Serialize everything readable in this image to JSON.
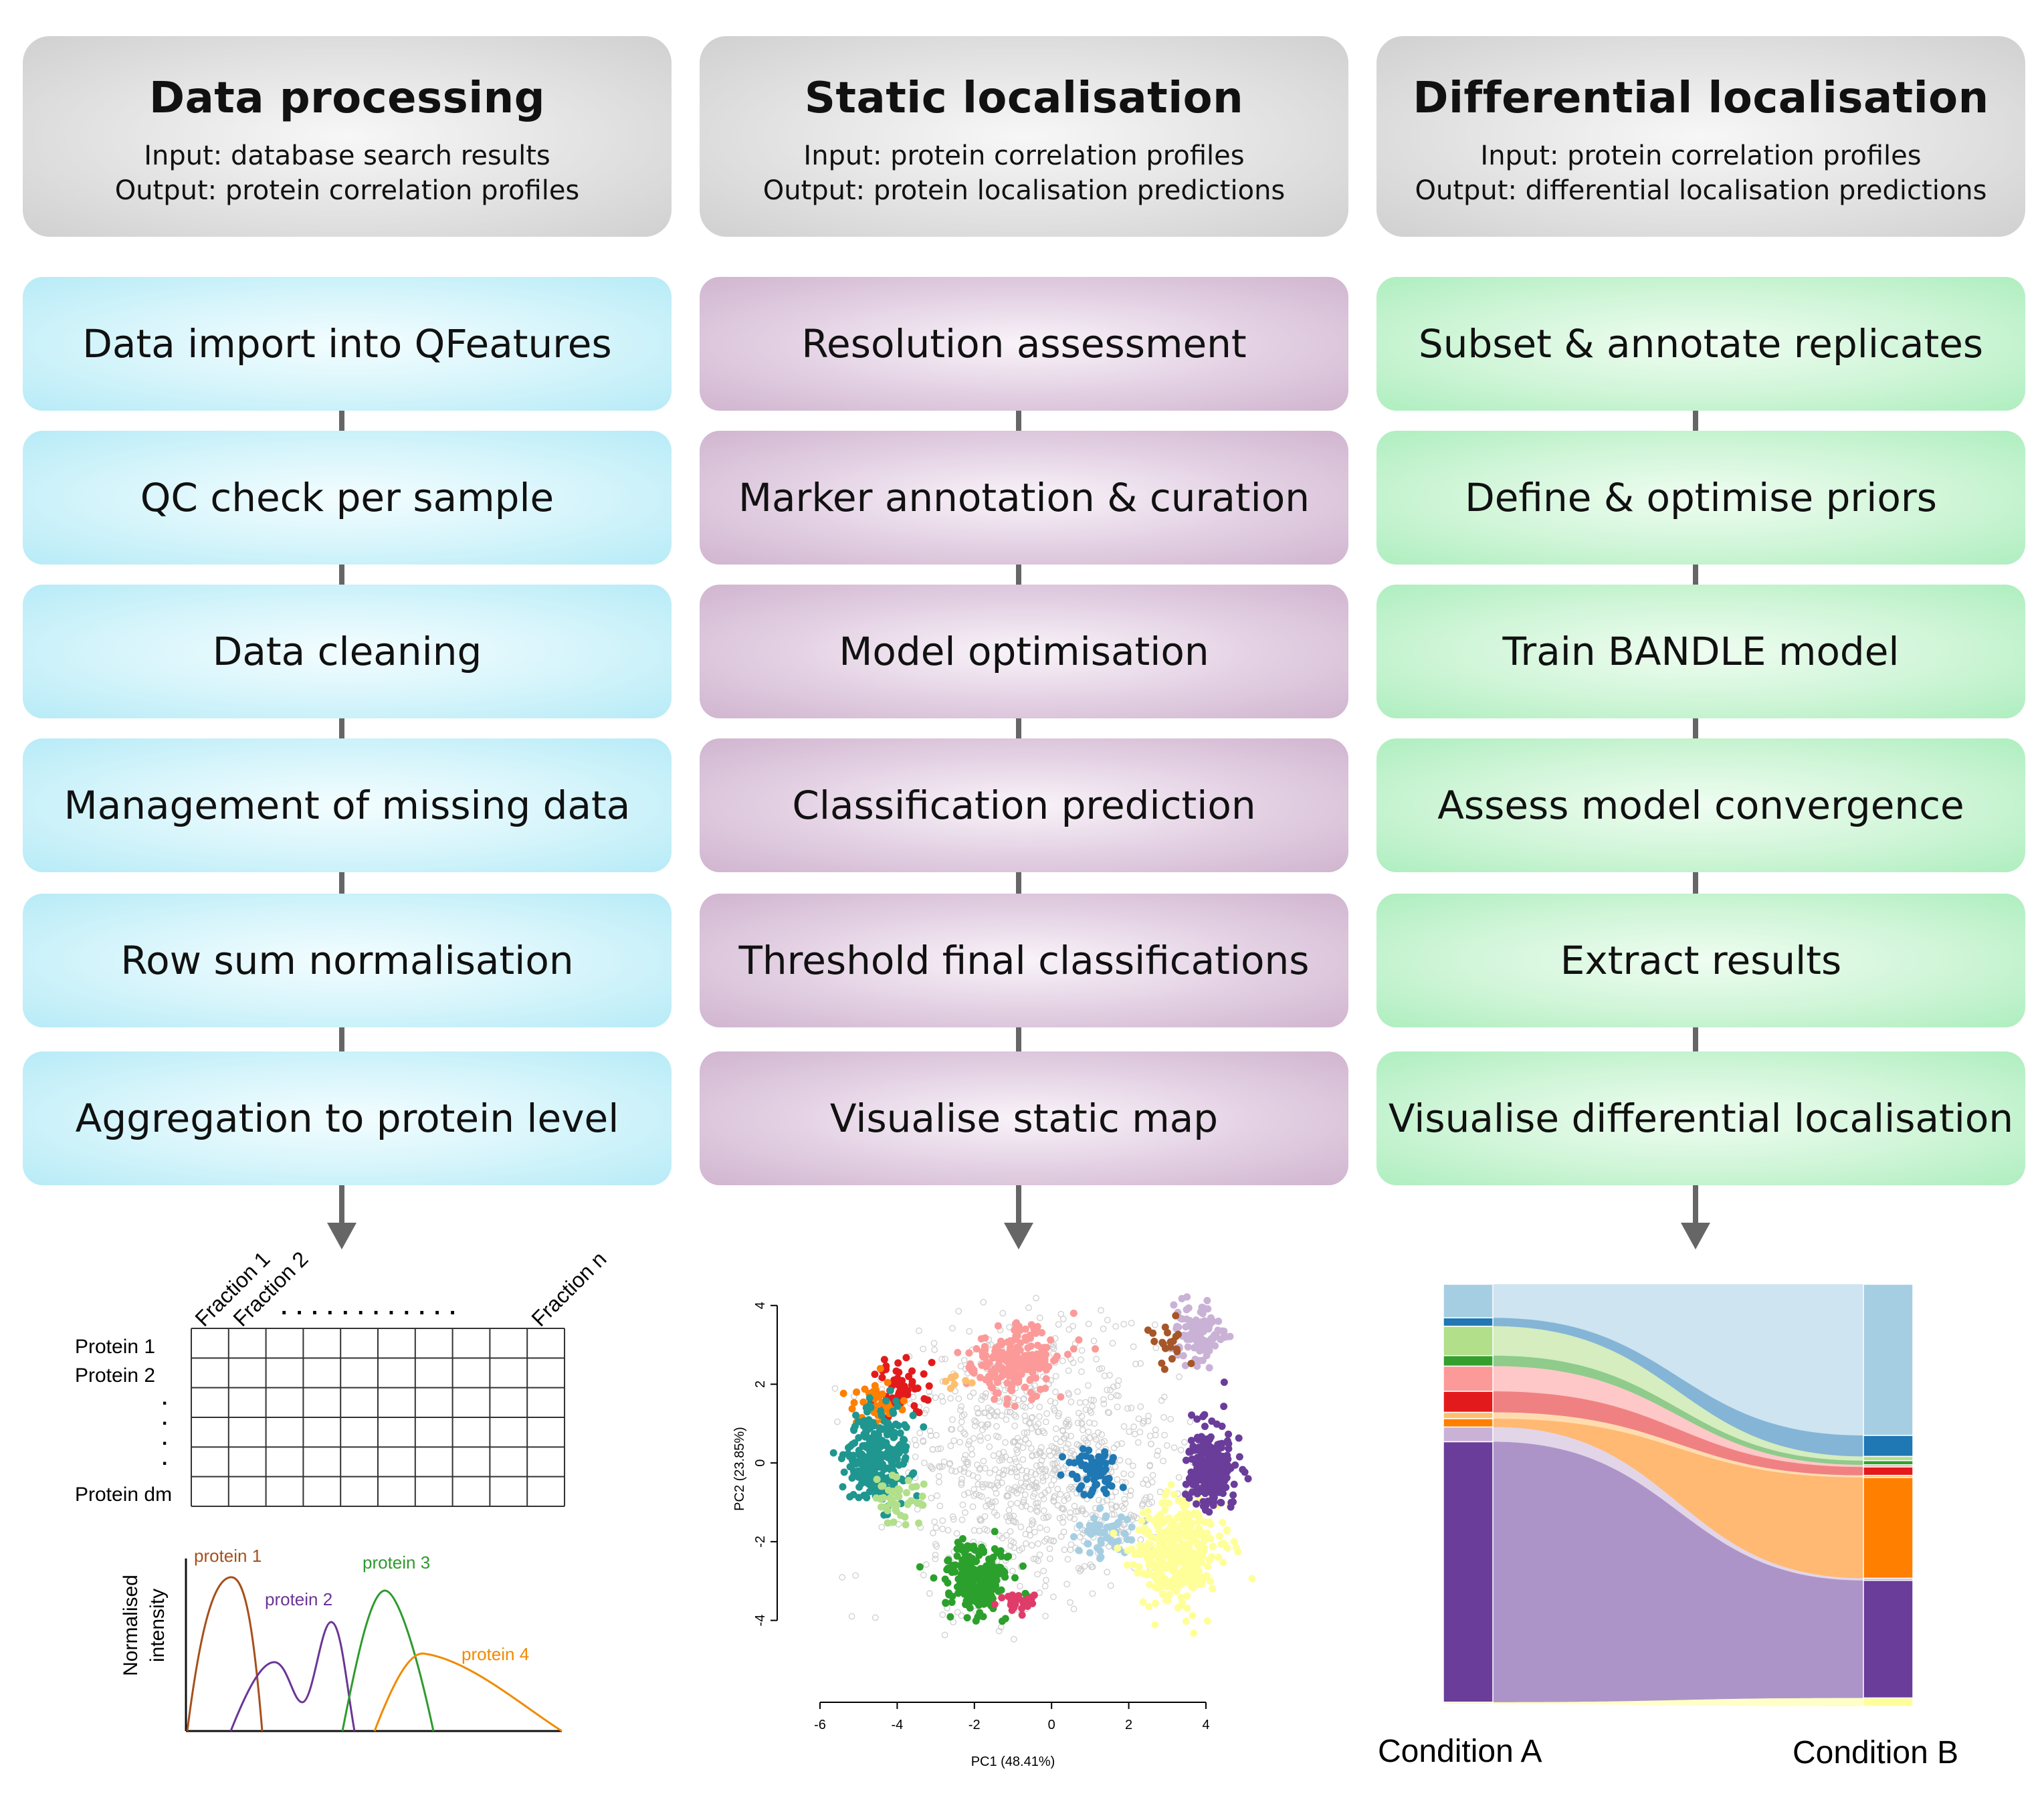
{
  "columns": [
    {
      "title": "Data processing",
      "input": "Input: database search results",
      "output": "Output: protein correlation profiles",
      "steps": [
        "Data import into QFeatures",
        "QC check per sample",
        "Data cleaning",
        "Management of missing data",
        "Row sum normalisation",
        "Aggregation to protein level"
      ]
    },
    {
      "title": "Static localisation",
      "input": "Input: protein correlation profiles",
      "output": "Output: protein localisation predictions",
      "steps": [
        "Resolution assessment",
        "Marker annotation & curation",
        "Model optimisation",
        "Classification prediction",
        "Threshold final classifications",
        "Visualise static map"
      ]
    },
    {
      "title": "Differential localisation",
      "input": "Input: protein correlation profiles",
      "output": "Output: differential localisation predictions",
      "steps": [
        "Subset & annotate replicates",
        "Define & optimise priors",
        "Train BANDLE model",
        "Assess model convergence",
        "Extract results",
        "Visualise differential localisation"
      ]
    }
  ],
  "matrix_figure": {
    "fraction_labels": [
      "Fraction 1",
      "Fraction 2",
      "Fraction n"
    ],
    "dots": ". . . . . . . . . . . .",
    "row_labels": [
      "Protein 1",
      "Protein 2",
      "Protein dm"
    ],
    "y_label_line1": "Normalised",
    "y_label_line2": "intensity",
    "profile_labels": [
      "protein 1",
      "protein 2",
      "protein 3",
      "protein 4"
    ],
    "colors": {
      "protein1": "#a6501b",
      "protein2": "#6b3595",
      "protein3": "#2e9a2e",
      "protein4": "#f08a00"
    }
  },
  "chart_data": [
    {
      "type": "scatter",
      "xlabel": "PC1 (48.41%)",
      "ylabel": "PC2 (23.85%)",
      "xlim": [
        -6,
        4
      ],
      "ylim": [
        -4.5,
        4.2
      ],
      "xticks": [
        "-6",
        "-4",
        "-2",
        "0",
        "2",
        "4"
      ],
      "yticks": [
        "4",
        "2",
        "0",
        "-2",
        "-4"
      ],
      "background_color": "#cfcfcf",
      "clusters": [
        {
          "color": "#fb9a99",
          "cx": -1.0,
          "cy": 2.6,
          "sx": 0.6,
          "sy": 0.4,
          "n": 220
        },
        {
          "color": "#e31a1c",
          "cx": -3.9,
          "cy": 1.9,
          "sx": 0.35,
          "sy": 0.4,
          "n": 60
        },
        {
          "color": "#ff7f00",
          "cx": -4.6,
          "cy": 1.5,
          "sx": 0.3,
          "sy": 0.3,
          "n": 40
        },
        {
          "color": "#fdbf6f",
          "cx": -2.4,
          "cy": 2.2,
          "sx": 0.2,
          "sy": 0.15,
          "n": 8
        },
        {
          "color": "#1f968f",
          "cx": -4.5,
          "cy": 0.2,
          "sx": 0.4,
          "sy": 0.6,
          "n": 260
        },
        {
          "color": "#b2df8a",
          "cx": -3.9,
          "cy": -0.9,
          "sx": 0.35,
          "sy": 0.35,
          "n": 45
        },
        {
          "color": "#2ca02c",
          "cx": -1.9,
          "cy": -2.9,
          "sx": 0.45,
          "sy": 0.45,
          "n": 230
        },
        {
          "color": "#e03c6a",
          "cx": -0.8,
          "cy": -3.5,
          "sx": 0.2,
          "sy": 0.15,
          "n": 30
        },
        {
          "color": "#1f78b4",
          "cx": 1.1,
          "cy": -0.2,
          "sx": 0.3,
          "sy": 0.25,
          "n": 70
        },
        {
          "color": "#a6cee3",
          "cx": 1.4,
          "cy": -1.8,
          "sx": 0.35,
          "sy": 0.25,
          "n": 60
        },
        {
          "color": "#ffff99",
          "cx": 3.3,
          "cy": -2.3,
          "sx": 0.55,
          "sy": 0.7,
          "n": 360
        },
        {
          "color": "#6a3d9a",
          "cx": 4.1,
          "cy": -0.1,
          "sx": 0.35,
          "sy": 0.5,
          "n": 230
        },
        {
          "color": "#cab2d6",
          "cx": 3.8,
          "cy": 3.3,
          "sx": 0.35,
          "sy": 0.35,
          "n": 120
        },
        {
          "color": "#a65628",
          "cx": 3.0,
          "cy": 3.0,
          "sx": 0.25,
          "sy": 0.3,
          "n": 20
        }
      ]
    },
    {
      "type": "alluvial",
      "categories": [
        "Condition A",
        "Condition B"
      ],
      "series": [
        {
          "color": "#a6cee3",
          "a": 0.08,
          "b": 0.36
        },
        {
          "color": "#1f78b4",
          "a": 0.02,
          "b": 0.05
        },
        {
          "color": "#b2df8a",
          "a": 0.07,
          "b": 0.01
        },
        {
          "color": "#33a02c",
          "a": 0.025,
          "b": 0.01
        },
        {
          "color": "#fb9a99",
          "a": 0.06,
          "b": 0.005
        },
        {
          "color": "#e31a1c",
          "a": 0.05,
          "b": 0.02
        },
        {
          "color": "#fdbf6f",
          "a": 0.015,
          "b": 0.005
        },
        {
          "color": "#ff7f00",
          "a": 0.02,
          "b": 0.24
        },
        {
          "color": "#cab2d6",
          "a": 0.035,
          "b": 0.005
        },
        {
          "color": "#6a3d9a",
          "a": 0.62,
          "b": 0.28
        },
        {
          "color": "#ffff99",
          "a": 0.005,
          "b": 0.02
        }
      ],
      "flow_color": "#6a3d9a"
    }
  ]
}
